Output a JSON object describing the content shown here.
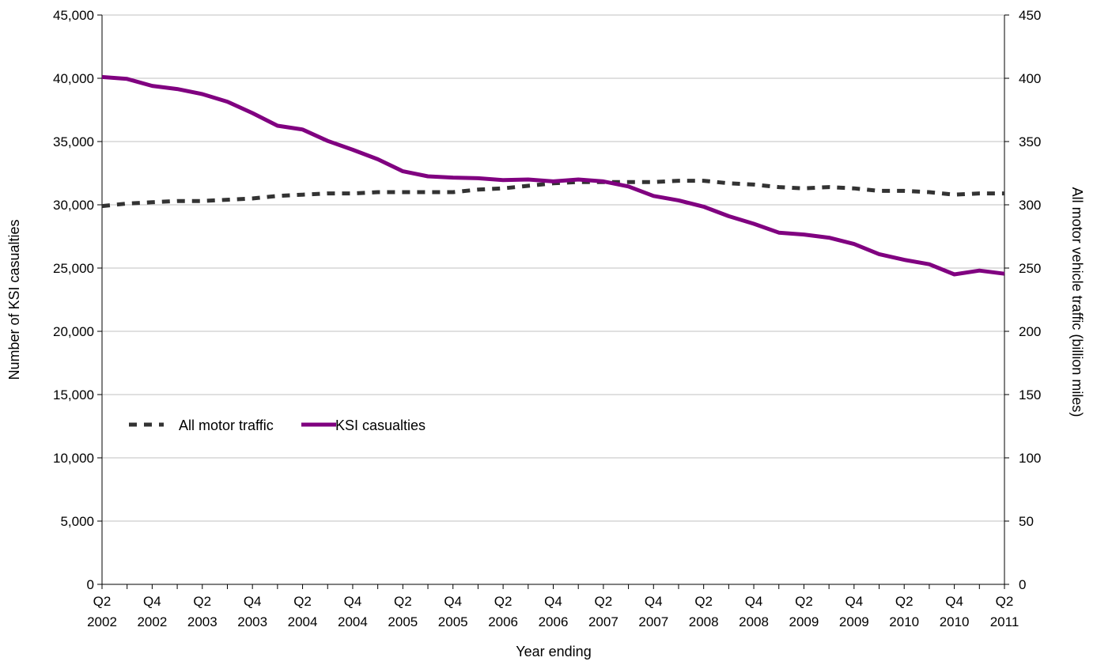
{
  "chart_data": {
    "type": "line",
    "xlabel": "Year ending",
    "ylabel_left": "Number of KSI casualties",
    "ylabel_right": "All motor vehicle traffic (billion miles)",
    "ylim_left": [
      0,
      45000
    ],
    "ylim_right": [
      0,
      450
    ],
    "yticks_left": [
      "0",
      "5,000",
      "10,000",
      "15,000",
      "20,000",
      "25,000",
      "30,000",
      "35,000",
      "40,000",
      "45,000"
    ],
    "yticks_right": [
      "0",
      "50",
      "100",
      "150",
      "200",
      "250",
      "300",
      "350",
      "400",
      "450"
    ],
    "x": [
      "Q2 2002",
      "Q3 2002",
      "Q4 2002",
      "Q1 2003",
      "Q2 2003",
      "Q3 2003",
      "Q4 2003",
      "Q1 2004",
      "Q2 2004",
      "Q3 2004",
      "Q4 2004",
      "Q1 2005",
      "Q2 2005",
      "Q3 2005",
      "Q4 2005",
      "Q1 2006",
      "Q2 2006",
      "Q3 2006",
      "Q4 2006",
      "Q1 2007",
      "Q2 2007",
      "Q3 2007",
      "Q4 2007",
      "Q1 2008",
      "Q2 2008",
      "Q3 2008",
      "Q4 2008",
      "Q1 2009",
      "Q2 2009",
      "Q3 2009",
      "Q4 2009",
      "Q1 2010",
      "Q2 2010",
      "Q3 2010",
      "Q4 2010",
      "Q1 2011",
      "Q2 2011"
    ],
    "x_tick_labels": [
      {
        "index": 0,
        "quarter": "Q2",
        "year": "2002"
      },
      {
        "index": 2,
        "quarter": "Q4",
        "year": "2002"
      },
      {
        "index": 4,
        "quarter": "Q2",
        "year": "2003"
      },
      {
        "index": 6,
        "quarter": "Q4",
        "year": "2003"
      },
      {
        "index": 8,
        "quarter": "Q2",
        "year": "2004"
      },
      {
        "index": 10,
        "quarter": "Q4",
        "year": "2004"
      },
      {
        "index": 12,
        "quarter": "Q2",
        "year": "2005"
      },
      {
        "index": 14,
        "quarter": "Q4",
        "year": "2005"
      },
      {
        "index": 16,
        "quarter": "Q2",
        "year": "2006"
      },
      {
        "index": 18,
        "quarter": "Q4",
        "year": "2006"
      },
      {
        "index": 20,
        "quarter": "Q2",
        "year": "2007"
      },
      {
        "index": 22,
        "quarter": "Q4",
        "year": "2007"
      },
      {
        "index": 24,
        "quarter": "Q2",
        "year": "2008"
      },
      {
        "index": 26,
        "quarter": "Q4",
        "year": "2008"
      },
      {
        "index": 28,
        "quarter": "Q2",
        "year": "2009"
      },
      {
        "index": 30,
        "quarter": "Q4",
        "year": "2009"
      },
      {
        "index": 32,
        "quarter": "Q2",
        "year": "2010"
      },
      {
        "index": 34,
        "quarter": "Q4",
        "year": "2010"
      },
      {
        "index": 36,
        "quarter": "Q2",
        "year": "2011"
      }
    ],
    "series": [
      {
        "name": "All motor traffic",
        "axis": "right",
        "style": "dashed",
        "color": "#333333",
        "values": [
          299,
          301,
          302,
          303,
          303,
          304,
          305,
          307,
          308,
          309,
          309,
          310,
          310,
          310,
          310,
          312,
          313,
          315,
          317,
          318,
          318,
          318,
          318,
          319,
          319,
          317,
          316,
          314,
          313,
          314,
          313,
          311,
          311,
          310,
          308,
          309,
          309
        ]
      },
      {
        "name": "KSI casualties",
        "axis": "left",
        "style": "solid",
        "color": "#800080",
        "values": [
          40100,
          39950,
          39400,
          39150,
          38750,
          38150,
          37250,
          36250,
          35950,
          35050,
          34350,
          33600,
          32650,
          32250,
          32150,
          32100,
          31950,
          32000,
          31850,
          32000,
          31850,
          31450,
          30700,
          30350,
          29850,
          29100,
          28500,
          27800,
          27650,
          27400,
          26900,
          26100,
          25650,
          25300,
          24500,
          24800,
          24550
        ]
      }
    ],
    "grid": "horizontal",
    "legend_position": "center-left"
  }
}
